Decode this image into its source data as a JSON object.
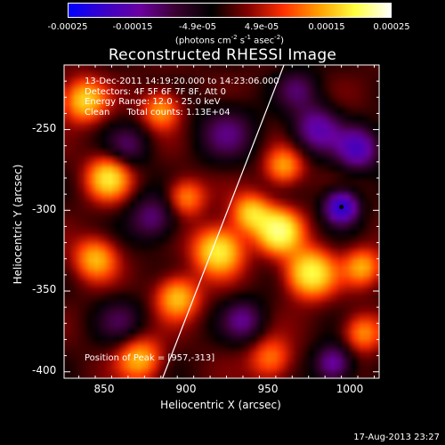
{
  "colorbar": {
    "ticks": [
      "-0.00025",
      "-0.00015",
      "-4.9e-05",
      "4.9e-05",
      "0.00015",
      "0.00025"
    ],
    "unit_text": "(photons cm",
    "unit_sup1": "-2",
    "unit_mid": " s",
    "unit_sup2": "-1",
    "unit_end": " asec",
    "unit_sup3": "-2",
    "unit_close": ")",
    "min": -0.00025,
    "max": 0.00025,
    "colors": [
      "#0000ff",
      "#3a00c8",
      "#6a00a0",
      "#3a0030",
      "#000000",
      "#800000",
      "#ff3000",
      "#ffa000",
      "#ffff40",
      "#ffffff"
    ]
  },
  "chart_data": {
    "type": "heatmap",
    "title": "Reconstructed RHESSI Image",
    "xlabel": "Heliocentric X (arcsec)",
    "ylabel": "Heliocentric Y (arcsec)",
    "xlim": [
      826,
      1018
    ],
    "ylim": [
      -404,
      -210
    ],
    "xticks": [
      850,
      900,
      950,
      1000
    ],
    "yticks": [
      -250,
      -300,
      -350,
      -400
    ],
    "limb_line": [
      [
        886,
        -404
      ],
      [
        960,
        -210
      ]
    ],
    "peak": [
      957,
      -313
    ],
    "blobs": [
      {
        "x": 957,
        "y": -313,
        "v": 1.0,
        "s": 9
      },
      {
        "x": 976,
        "y": -339,
        "v": 0.9,
        "s": 10
      },
      {
        "x": 920,
        "y": -325,
        "v": 0.85,
        "s": 10
      },
      {
        "x": 940,
        "y": -302,
        "v": 0.7,
        "s": 8
      },
      {
        "x": 853,
        "y": -280,
        "v": 0.75,
        "s": 9
      },
      {
        "x": 838,
        "y": -232,
        "v": 0.7,
        "s": 9
      },
      {
        "x": 885,
        "y": -238,
        "v": 0.55,
        "s": 8
      },
      {
        "x": 845,
        "y": -330,
        "v": 0.6,
        "s": 9
      },
      {
        "x": 895,
        "y": -354,
        "v": 0.65,
        "s": 9
      },
      {
        "x": 872,
        "y": -392,
        "v": 0.6,
        "s": 9
      },
      {
        "x": 960,
        "y": -273,
        "v": 0.55,
        "s": 8
      },
      {
        "x": 1008,
        "y": -335,
        "v": 0.55,
        "s": 8
      },
      {
        "x": 1008,
        "y": -376,
        "v": 0.5,
        "s": 8
      },
      {
        "x": 952,
        "y": -392,
        "v": 0.45,
        "s": 9
      },
      {
        "x": 900,
        "y": -292,
        "v": 0.5,
        "s": 8
      },
      {
        "x": 980,
        "y": -250,
        "v": -0.6,
        "s": 10
      },
      {
        "x": 995,
        "y": -298,
        "v": -1.0,
        "s": 7
      },
      {
        "x": 1005,
        "y": -262,
        "v": -0.7,
        "s": 9
      },
      {
        "x": 925,
        "y": -252,
        "v": -0.4,
        "s": 12
      },
      {
        "x": 990,
        "y": -395,
        "v": -0.6,
        "s": 8
      },
      {
        "x": 880,
        "y": -305,
        "v": -0.45,
        "s": 10
      },
      {
        "x": 865,
        "y": -260,
        "v": -0.35,
        "s": 9
      },
      {
        "x": 935,
        "y": -368,
        "v": -0.45,
        "s": 9
      },
      {
        "x": 860,
        "y": -368,
        "v": -0.3,
        "s": 10
      },
      {
        "x": 968,
        "y": -225,
        "v": -0.35,
        "s": 9
      }
    ]
  },
  "info": {
    "line1": "13-Dec-2011 14:19:20.000 to 14:23:06.000",
    "line2": "Detectors: 4F 5F 6F 7F 8F, Att 0",
    "line3": "Energy Range: 12.0 - 25.0 keV",
    "line4": "Clean      Total counts: 1.13E+04",
    "peak_text": "Position of Peak = [957,-313]"
  },
  "axis_tick_labels": {
    "x": [
      "850",
      "900",
      "950",
      "1000"
    ],
    "y": [
      "-250",
      "-300",
      "-350",
      "-400"
    ]
  },
  "timestamp": "17-Aug-2013 23:27"
}
